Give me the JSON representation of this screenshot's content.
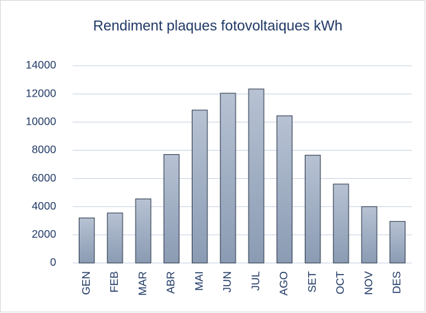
{
  "chart_data": {
    "type": "bar",
    "title": "Rendiment plaques fotovoltaiques kWh",
    "categories": [
      "GEN",
      "FEB",
      "MAR",
      "ABR",
      "MAI",
      "JUN",
      "JUL",
      "AGO",
      "SET",
      "OCT",
      "NOV",
      "DES"
    ],
    "values": [
      3200,
      3550,
      4550,
      7700,
      10850,
      12050,
      12350,
      10450,
      7650,
      5600,
      4000,
      2950
    ],
    "color": "#8a9bb3",
    "ylim": [
      0,
      14000
    ],
    "yticks": [
      0,
      2000,
      4000,
      6000,
      8000,
      10000,
      12000,
      14000
    ],
    "grid": true
  }
}
